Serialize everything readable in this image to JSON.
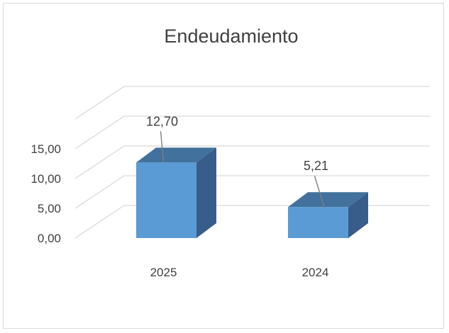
{
  "chart_data": {
    "type": "bar",
    "title": "Endeudamiento",
    "categories": [
      "2025",
      "2024"
    ],
    "series": [
      {
        "values": [
          12.7,
          5.21
        ],
        "labels": [
          "12,70",
          "5,21"
        ]
      }
    ],
    "y_ticks": [
      "0,00",
      "5,00",
      "10,00",
      "15,00"
    ],
    "ylim": [
      0,
      15
    ],
    "grid": true,
    "legend": "none",
    "style": "3d-column",
    "colors": {
      "front": "#5b9bd5",
      "top": "#41719c",
      "side": "#385d8a"
    }
  }
}
